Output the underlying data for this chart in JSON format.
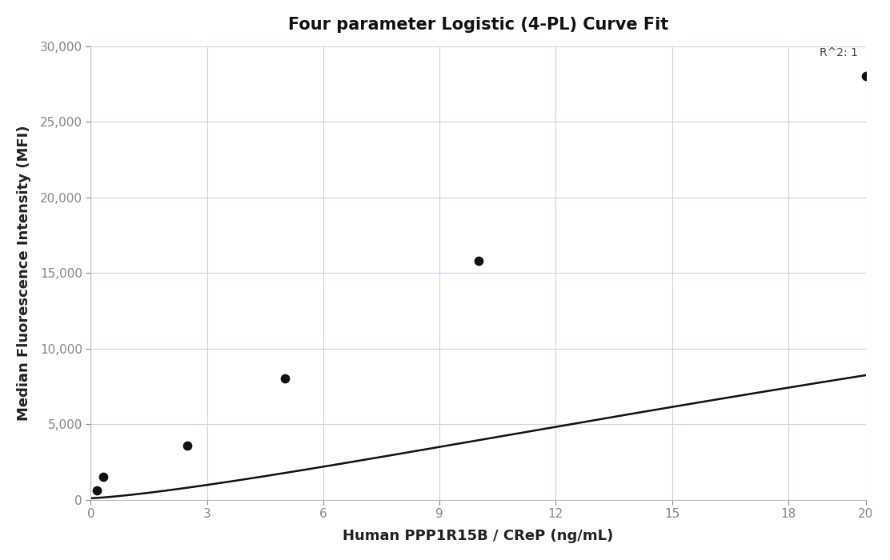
{
  "title": "Four parameter Logistic (4-PL) Curve Fit",
  "xlabel": "Human PPP1R15B / CReP (ng/mL)",
  "ylabel": "Median Fluorescence Intensity (MFI)",
  "scatter_x": [
    0.156,
    0.313,
    2.5,
    5.0,
    10.0,
    20.0
  ],
  "scatter_y": [
    600,
    1500,
    3600,
    8000,
    15800,
    28000
  ],
  "r_squared_text": "R^2: 1",
  "xlim": [
    0,
    20
  ],
  "ylim": [
    0,
    30000
  ],
  "xticks": [
    0,
    3,
    6,
    9,
    12,
    15,
    18,
    20
  ],
  "yticks": [
    0,
    5000,
    10000,
    15000,
    20000,
    25000,
    30000
  ],
  "ytick_labels": [
    "0",
    "5,000",
    "10,000",
    "15,000",
    "20,000",
    "25,000",
    "30,000"
  ],
  "xtick_labels": [
    "0",
    "3",
    "6",
    "9",
    "12",
    "15",
    "18",
    "20"
  ],
  "line_color": "#111111",
  "marker_color": "#111111",
  "bg_color": "#ffffff",
  "grid_color": "#c8d4e8",
  "title_fontsize": 15,
  "label_fontsize": 13,
  "tick_fontsize": 11,
  "annotation_fontsize": 10,
  "r2_x": 19.8,
  "r2_y": 29200
}
